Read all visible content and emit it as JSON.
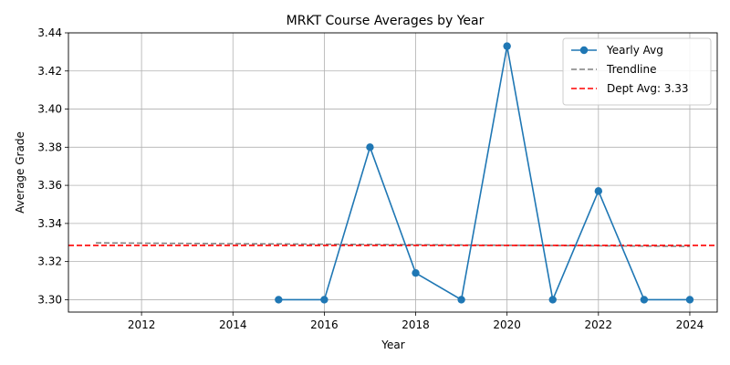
{
  "chart_data": {
    "type": "line",
    "title": "MRKT Course Averages by Year",
    "xlabel": "Year",
    "ylabel": "Average Grade",
    "xlim": [
      2010.4,
      2024.6
    ],
    "ylim": [
      3.2935,
      3.44
    ],
    "xticks": [
      2012,
      2014,
      2016,
      2018,
      2020,
      2022,
      2024
    ],
    "yticks": [
      3.3,
      3.32,
      3.34,
      3.36,
      3.38,
      3.4,
      3.42,
      3.44
    ],
    "grid": true,
    "legend_position": "top-right",
    "series": [
      {
        "name": "Yearly Avg",
        "kind": "line-marker",
        "color": "#1f77b4",
        "x": [
          2015,
          2016,
          2017,
          2018,
          2019,
          2020,
          2021,
          2022,
          2023,
          2024
        ],
        "y": [
          3.3,
          3.3,
          3.38,
          3.314,
          3.3,
          3.433,
          3.3,
          3.357,
          3.3,
          3.3
        ]
      },
      {
        "name": "Trendline",
        "kind": "dashed",
        "color": "#808080",
        "x": [
          2011,
          2024
        ],
        "y": [
          3.3298,
          3.328
        ]
      },
      {
        "name": "Dept Avg: 3.33",
        "kind": "hline-dashed",
        "color": "#ff0000",
        "y": 3.3285
      }
    ]
  }
}
